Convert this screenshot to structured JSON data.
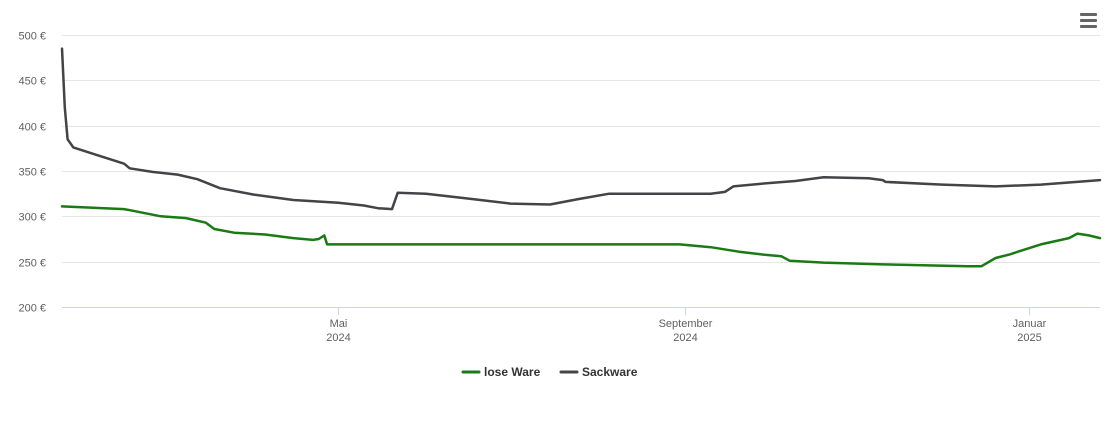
{
  "chart_data": {
    "type": "line",
    "y_tick_labels": [
      "200 €",
      "250 €",
      "300 €",
      "350 €",
      "400 €",
      "450 €",
      "500 €"
    ],
    "ylim": [
      200,
      500
    ],
    "x_ticks": [
      {
        "date": "2024-05-01",
        "month": "Mai",
        "year": "2024"
      },
      {
        "date": "2024-09-01",
        "month": "September",
        "year": "2024"
      },
      {
        "date": "2025-01-01",
        "month": "Januar",
        "year": "2025"
      }
    ],
    "xlim": [
      "2024-01-24",
      "2025-01-26"
    ],
    "grid": true,
    "legend_position": "bottom-center",
    "series": [
      {
        "name": "lose Ware",
        "color": "#1a7a14",
        "points": [
          [
            "2024-01-24",
            311
          ],
          [
            "2024-02-15",
            308
          ],
          [
            "2024-02-20",
            305
          ],
          [
            "2024-02-28",
            300
          ],
          [
            "2024-03-08",
            298
          ],
          [
            "2024-03-15",
            293
          ],
          [
            "2024-03-18",
            286
          ],
          [
            "2024-03-25",
            282
          ],
          [
            "2024-04-05",
            280
          ],
          [
            "2024-04-15",
            276
          ],
          [
            "2024-04-22",
            274
          ],
          [
            "2024-04-24",
            275
          ],
          [
            "2024-04-26",
            279
          ],
          [
            "2024-04-27",
            269
          ],
          [
            "2024-08-30",
            269
          ],
          [
            "2024-09-10",
            266
          ],
          [
            "2024-09-20",
            261
          ],
          [
            "2024-09-28",
            258
          ],
          [
            "2024-10-05",
            256
          ],
          [
            "2024-10-08",
            251
          ],
          [
            "2024-10-20",
            249
          ],
          [
            "2024-11-10",
            247
          ],
          [
            "2024-12-10",
            245
          ],
          [
            "2024-12-15",
            245
          ],
          [
            "2024-12-20",
            254
          ],
          [
            "2024-12-25",
            258
          ],
          [
            "2025-01-05",
            269
          ],
          [
            "2025-01-15",
            276
          ],
          [
            "2025-01-18",
            281
          ],
          [
            "2025-01-22",
            279
          ],
          [
            "2025-01-26",
            276
          ]
        ]
      },
      {
        "name": "Sackware",
        "color": "#434348",
        "points": [
          [
            "2024-01-24",
            485
          ],
          [
            "2024-01-25",
            420
          ],
          [
            "2024-01-26",
            385
          ],
          [
            "2024-01-28",
            376
          ],
          [
            "2024-02-01",
            372
          ],
          [
            "2024-02-05",
            368
          ],
          [
            "2024-02-10",
            363
          ],
          [
            "2024-02-15",
            358
          ],
          [
            "2024-02-17",
            353
          ],
          [
            "2024-02-25",
            349
          ],
          [
            "2024-03-05",
            346
          ],
          [
            "2024-03-12",
            341
          ],
          [
            "2024-03-20",
            331
          ],
          [
            "2024-04-01",
            324
          ],
          [
            "2024-04-15",
            318
          ],
          [
            "2024-05-01",
            315
          ],
          [
            "2024-05-10",
            312
          ],
          [
            "2024-05-15",
            309
          ],
          [
            "2024-05-20",
            308
          ],
          [
            "2024-05-22",
            326
          ],
          [
            "2024-06-01",
            325
          ],
          [
            "2024-06-15",
            320
          ],
          [
            "2024-07-01",
            314
          ],
          [
            "2024-07-15",
            313
          ],
          [
            "2024-07-25",
            319
          ],
          [
            "2024-08-05",
            325
          ],
          [
            "2024-08-15",
            325
          ],
          [
            "2024-09-01",
            325
          ],
          [
            "2024-09-10",
            325
          ],
          [
            "2024-09-15",
            327
          ],
          [
            "2024-09-18",
            333
          ],
          [
            "2024-09-28",
            336
          ],
          [
            "2024-10-10",
            339
          ],
          [
            "2024-10-20",
            343
          ],
          [
            "2024-11-05",
            342
          ],
          [
            "2024-11-10",
            340
          ],
          [
            "2024-11-11",
            338
          ],
          [
            "2024-12-01",
            335
          ],
          [
            "2024-12-20",
            333
          ],
          [
            "2025-01-05",
            335
          ],
          [
            "2025-01-26",
            340
          ]
        ]
      }
    ]
  },
  "toolbar": {
    "menu_icon": "hamburger-menu-icon"
  }
}
